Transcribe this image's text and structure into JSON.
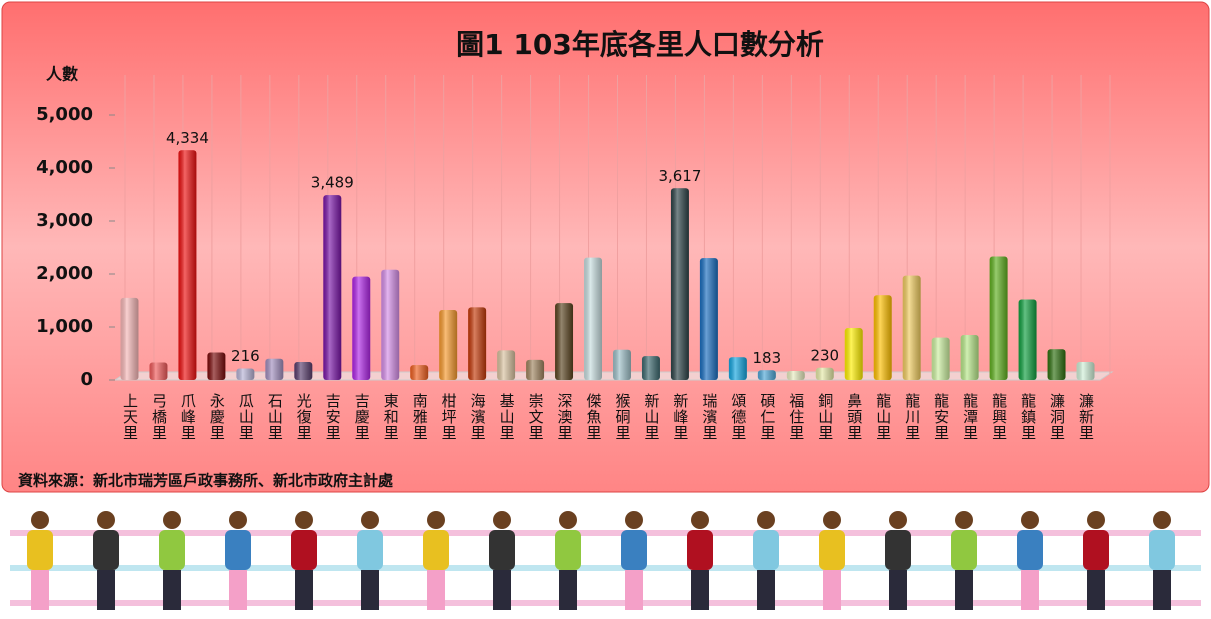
{
  "chart_data": {
    "type": "bar",
    "title": "圖1  103年底各里人口數分析",
    "y_label": "人數",
    "source": "資料來源：新北市瑞芳區戶政事務所、新北市政府主計處",
    "categories": [
      "上天里",
      "弓橋里",
      "爪峰里",
      "永慶里",
      "瓜山里",
      "石山里",
      "光復里",
      "吉安里",
      "吉慶里",
      "東和里",
      "南雅里",
      "柑坪里",
      "海濱里",
      "基山里",
      "崇文里",
      "深澳里",
      "傑魚里",
      "猴硐里",
      "新山里",
      "新峰里",
      "瑞濱里",
      "頌德里",
      "碩仁里",
      "福住里",
      "銅山里",
      "鼻頭里",
      "龍山里",
      "龍川里",
      "龍安里",
      "龍潭里",
      "龍興里",
      "龍鎮里",
      "濂洞里",
      "濂新里"
    ],
    "values": [
      1550,
      330,
      4334,
      520,
      216,
      400,
      340,
      3489,
      1950,
      2080,
      280,
      1320,
      1370,
      560,
      380,
      1450,
      2310,
      570,
      450,
      3617,
      2300,
      430,
      183,
      170,
      230,
      980,
      1600,
      1970,
      800,
      850,
      2330,
      1520,
      580,
      340
    ],
    "value_labels": [
      null,
      null,
      "4,334",
      null,
      "216",
      null,
      null,
      "3,489",
      null,
      null,
      null,
      null,
      null,
      null,
      null,
      null,
      null,
      null,
      null,
      "3,617",
      null,
      null,
      "183",
      null,
      "230",
      null,
      null,
      null,
      null,
      null,
      null,
      null,
      null,
      null
    ],
    "colors": [
      "#f6b7b7",
      "#f05a5a",
      "#ee1111",
      "#7a0a0a",
      "#b7b3d6",
      "#a28fbf",
      "#5a3f6e",
      "#7a16a8",
      "#b026e8",
      "#d58ee8",
      "#f06020",
      "#f79a2e",
      "#c43a0a",
      "#d9c2a0",
      "#a08560",
      "#5a4420",
      "#c8dee0",
      "#9ec0c8",
      "#3e6a70",
      "#2e4448",
      "#1a6ec0",
      "#14a6e0",
      "#4fa8d8",
      "#e8ecc0",
      "#e6eaa8",
      "#fff000",
      "#ffc000",
      "#f0cc60",
      "#ccf0a0",
      "#b8e88a",
      "#60b020",
      "#10a040",
      "#2e7010",
      "#d0f0d8"
    ],
    "ylim": [
      0,
      5000
    ],
    "yticks": [
      {
        "value": 0,
        "label": "0"
      },
      {
        "value": 1000,
        "label": "1,000"
      },
      {
        "value": 2000,
        "label": "2,000"
      },
      {
        "value": 3000,
        "label": "3,000"
      },
      {
        "value": 4000,
        "label": "4,000"
      },
      {
        "value": 5000,
        "label": "5,000"
      }
    ]
  }
}
